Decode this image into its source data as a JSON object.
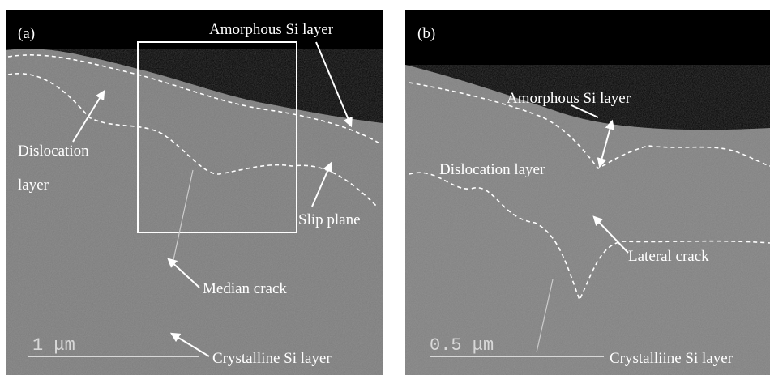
{
  "panels": [
    {
      "label": "(a)",
      "annotations": [
        "Amorphous Si layer",
        "Dislocation",
        "layer",
        "Slip plane",
        "Median crack",
        "Crystalline Si layer"
      ],
      "scale_bar": "1 μm"
    },
    {
      "label": "(b)",
      "annotations": [
        "Amorphous Si layer",
        "Dislocation layer",
        "Lateral crack",
        "Crystalliine Si layer"
      ],
      "scale_bar": "0.5 μm"
    }
  ]
}
